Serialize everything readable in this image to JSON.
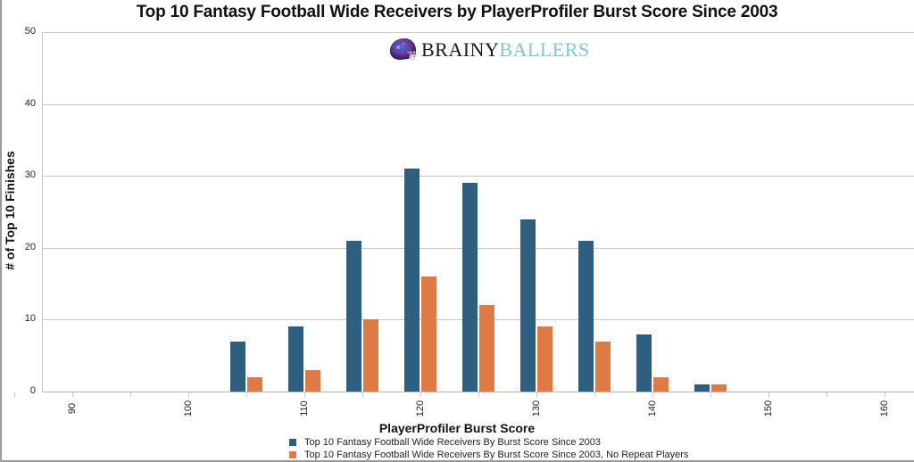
{
  "chart_data": {
    "type": "bar",
    "title": "Top 10 Fantasy Football Wide Receivers by PlayerProfiler Burst Score Since 2003",
    "xlabel": "PlayerProfiler Burst Score",
    "ylabel": "# of Top 10 Finishes",
    "ylim": [
      0,
      50
    ],
    "yticks": [
      0,
      10,
      20,
      30,
      40,
      50
    ],
    "xlim": [
      88,
      165
    ],
    "xticks": [
      90,
      100,
      110,
      120,
      130,
      140,
      150,
      160
    ],
    "grid": true,
    "legend_position": "bottom",
    "categories": [
      105,
      110,
      115,
      120,
      125,
      130,
      135,
      140,
      145
    ],
    "series": [
      {
        "name": "Top 10 Fantasy Football Wide Receivers By Burst Score Since 2003",
        "color": "#2e5f80",
        "values": [
          7,
          9,
          21,
          31,
          29,
          24,
          21,
          8,
          1
        ]
      },
      {
        "name": "Top 10 Fantasy Football Wide Receivers By Burst Score Since 2003, No Repeat Players",
        "color": "#e07a45",
        "values": [
          2,
          3,
          10,
          16,
          12,
          9,
          7,
          2,
          1
        ]
      }
    ]
  },
  "logo": {
    "part1": "BRAINY",
    "part2": "BALLERS",
    "icon": "football-helmet-icon"
  }
}
